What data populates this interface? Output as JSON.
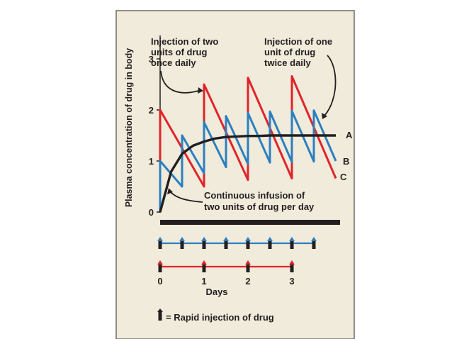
{
  "figure": {
    "panel_bg": "#f0ebda",
    "panel_border": "#6d6a66"
  },
  "chart_data": {
    "type": "line",
    "ylabel": "Plasma concentration of drug in body",
    "xlabel": "Days",
    "xlim": [
      0,
      4
    ],
    "ylim": [
      0,
      3
    ],
    "x_ticks": [
      "0",
      "1",
      "2",
      "3"
    ],
    "y_ticks": [
      "0",
      "1",
      "2",
      "3"
    ],
    "grid": false,
    "series": [
      {
        "name": "A",
        "color": "#231f20",
        "x": [
          0,
          0.25,
          0.5,
          0.75,
          1,
          1.25,
          1.5,
          1.75,
          2,
          2.25,
          2.5,
          2.75,
          3,
          3.25,
          3.5,
          3.75,
          4
        ],
        "y": [
          0,
          0.79,
          1.14,
          1.3,
          1.38,
          1.44,
          1.47,
          1.48,
          1.49,
          1.49,
          1.5,
          1.5,
          1.5,
          1.5,
          1.5,
          1.5,
          1.5
        ]
      },
      {
        "name": "B",
        "color": "#2d7fc1",
        "x": [
          0,
          0,
          0.5,
          0.5,
          1,
          1,
          1.5,
          1.5,
          2,
          2,
          2.5,
          2.5,
          3,
          3,
          3.5,
          3.5,
          4
        ],
        "y": [
          0,
          1.0,
          0.5,
          1.5,
          0.76,
          1.76,
          0.88,
          1.88,
          0.94,
          1.94,
          0.97,
          1.97,
          0.98,
          1.98,
          0.99,
          1.99,
          1.0
        ]
      },
      {
        "name": "C",
        "color": "#e0242b",
        "x": [
          0,
          0,
          1,
          1,
          2,
          2,
          3,
          3,
          4
        ],
        "y": [
          0,
          2.0,
          0.5,
          2.5,
          0.63,
          2.63,
          0.66,
          2.66,
          0.66
        ]
      }
    ],
    "annotations": {
      "top_left": [
        "Injection of two",
        "units of drug",
        "once daily"
      ],
      "top_right": [
        "Injection of one",
        "unit of drug",
        "twice daily"
      ],
      "bottom": [
        "Continuous infusion of",
        "two units of drug per day"
      ]
    },
    "infusion_bar_label": "",
    "timeline_blue": {
      "color": "#2d7fc1",
      "injection_days": [
        0,
        0.5,
        1,
        1.5,
        2,
        2.5,
        3,
        3.5
      ]
    },
    "timeline_red": {
      "color": "#e0242b",
      "injection_days": [
        0,
        1,
        2,
        3
      ]
    },
    "key_label": "= Rapid injection of drug"
  }
}
